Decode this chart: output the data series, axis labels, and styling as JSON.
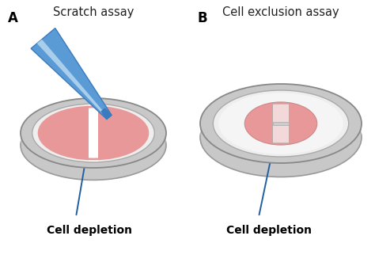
{
  "title_A": "Scratch assay",
  "title_B": "Cell exclusion assay",
  "label_A": "Cell depletion",
  "label_B": "Cell depletion",
  "panel_A": "A",
  "panel_B": "B",
  "bg_color": "#ffffff",
  "dish_gray_outer": "#c8c8c8",
  "dish_gray_mid": "#d8d8d8",
  "dish_gray_inner": "#eeeeee",
  "dish_white_floor": "#f5f5f5",
  "cell_color": "#e89898",
  "scratch_white": "#ffffff",
  "pipette_dark": "#3a7abf",
  "pipette_mid": "#5b9bd5",
  "pipette_light": "#b8d8f0",
  "arrow_color": "#2060a0",
  "insert_fill": "#f2d8d8",
  "insert_bar": "#cccccc",
  "title_fontsize": 10.5,
  "label_fontsize": 10,
  "panel_fontsize": 12
}
